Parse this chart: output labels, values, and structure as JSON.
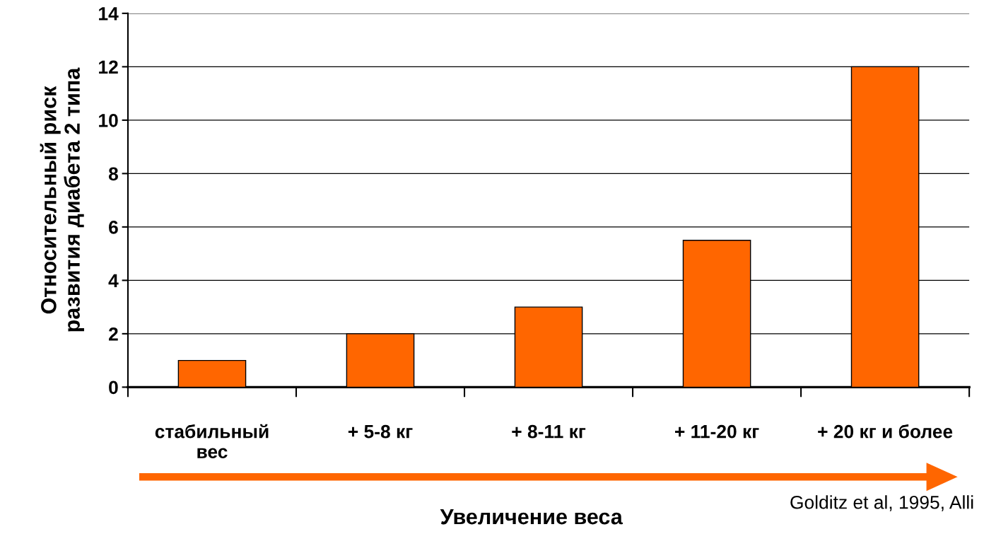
{
  "chart_data": {
    "type": "bar",
    "ylabel": "Относительный риск\nразвития диабета 2 типа",
    "xlabel": "Увеличение веса",
    "categories": [
      "стабильный\nвес",
      "+ 5-8 кг",
      "+ 8-11 кг",
      "+ 11-20 кг",
      "+ 20 кг и более"
    ],
    "values": [
      1,
      2,
      3,
      5.5,
      12
    ],
    "color": "#ff6600",
    "ylim": [
      0,
      14
    ],
    "yticks": [
      0,
      2,
      4,
      6,
      8,
      10,
      12,
      14
    ],
    "grid": "y",
    "annotations": [
      "Golditz et al, 1995, Alli"
    ]
  }
}
